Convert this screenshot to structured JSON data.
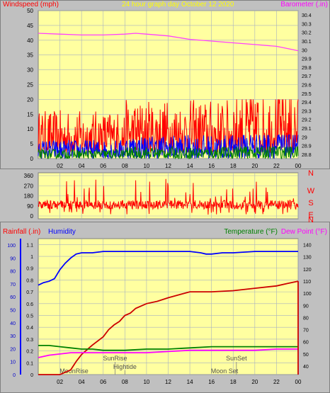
{
  "header": {
    "windspeed_label": "Windspeed (mph)",
    "graph_title": "24 hour graph day   October 12 2020",
    "barometer_label": "Barometer (.in)"
  },
  "compass": [
    "N",
    "W",
    "S",
    "E",
    "N"
  ],
  "lower_header": {
    "rainfall_label": "Rainfall (.in)",
    "humidity_label": "Humidity",
    "temperature_label": "Temperature (°F)",
    "dewpoint_label": "Dew Point (°F)"
  },
  "colors": {
    "plot_bg": "#ffffa0",
    "grid": "#a8b0c0",
    "wind_gust": "#ff0000",
    "wind_avg": "#0000ff",
    "wind_low": "#008000",
    "barometer": "#ff40ff",
    "direction": "#ff0000",
    "humidity": "#0000ff",
    "rainfall": "#cc0000",
    "temperature": "#008000",
    "dewpoint": "#ff00ff"
  },
  "chart_data": [
    {
      "type": "line",
      "title": "24 hour graph day   October 12 2020",
      "xlabel": "",
      "x_ticks": [
        "02",
        "04",
        "06",
        "08",
        "10",
        "12",
        "14",
        "16",
        "18",
        "20",
        "22",
        "00"
      ],
      "y_left_label": "Windspeed (mph)",
      "y_left_ticks": [
        "50",
        "45",
        "40",
        "35",
        "30",
        "25",
        "20",
        "15",
        "10",
        "5",
        "0"
      ],
      "ylim_left": [
        0,
        50
      ],
      "y_right_label": "Barometer (.in)",
      "y_right_ticks": [
        "30.4",
        "30.3",
        "30.2",
        "30.1",
        "30",
        "29.9",
        "29.8",
        "29.7",
        "29.6",
        "29.5",
        "29.4",
        "29.3",
        "29.2",
        "29.1",
        "29",
        "28.9",
        "28.8"
      ],
      "ylim_right": [
        28.75,
        30.45
      ],
      "grid": true,
      "series": [
        {
          "name": "Barometer (.in)",
          "axis": "right",
          "x": [
            0,
            2,
            4,
            6,
            8,
            9,
            10,
            12,
            14,
            16,
            18,
            20,
            22,
            24
          ],
          "values": [
            30.19,
            30.18,
            30.17,
            30.17,
            30.18,
            30.19,
            30.18,
            30.16,
            30.12,
            30.1,
            30.08,
            30.06,
            30.04,
            29.99
          ]
        }
      ],
      "wind_bands": {
        "gust_range": [
          2,
          22
        ],
        "avg_range": [
          0,
          8
        ],
        "low_range": [
          0,
          4
        ]
      }
    },
    {
      "type": "line",
      "title": "",
      "x_ticks": [
        "02",
        "04",
        "06",
        "08",
        "10",
        "12",
        "14",
        "16",
        "18",
        "20",
        "22",
        "00"
      ],
      "y_ticks": [
        "360",
        "270",
        "180",
        "90",
        "0"
      ],
      "ylim": [
        0,
        360
      ],
      "grid": true,
      "direction_range": [
        10,
        360
      ]
    },
    {
      "type": "line",
      "title": "",
      "x_ticks": [
        "02",
        "04",
        "06",
        "08",
        "10",
        "12",
        "14",
        "16",
        "18",
        "20",
        "22",
        "00"
      ],
      "y_left_outer_label": "Rainfall (.in)",
      "y_left_outer_ticks": [
        "100",
        "90",
        "80",
        "70",
        "60",
        "50",
        "40",
        "30",
        "20",
        "10",
        "0"
      ],
      "y_left_inner_label": "Humidity",
      "y_left_inner_ticks": [
        "1.1",
        "1",
        "0.9",
        "0.8",
        "0.7",
        "0.6",
        "0.5",
        "0.4",
        "0.3",
        "0.2",
        "0.1",
        "0"
      ],
      "ylim_humidity": [
        0,
        100
      ],
      "ylim_rain": [
        0,
        1.15
      ],
      "y_right_label": "Temperature (°F)",
      "y_right_label2": "Dew Point (°F)",
      "y_right_ticks": [
        "140",
        "130",
        "120",
        "110",
        "100",
        "90",
        "80",
        "70",
        "60",
        "50",
        "40"
      ],
      "ylim_right": [
        33,
        145
      ],
      "grid": true,
      "series": [
        {
          "name": "Humidity",
          "axis": "humidity",
          "x": [
            0,
            0.5,
            1,
            1.5,
            2,
            2.5,
            3,
            3.5,
            4,
            5,
            6,
            8,
            10,
            12,
            14,
            15,
            15.5,
            16,
            17,
            18,
            20,
            22,
            24
          ],
          "values": [
            69,
            71,
            72,
            74,
            81,
            86,
            90,
            93,
            94,
            94,
            95,
            95,
            95,
            95,
            95,
            94,
            93,
            93,
            94,
            94,
            95,
            95,
            95
          ]
        },
        {
          "name": "Rainfall (.in)",
          "axis": "rain",
          "x": [
            0,
            2,
            2.5,
            3,
            3.5,
            4,
            5,
            6,
            6.5,
            7,
            7.5,
            8,
            8.5,
            9,
            10,
            11,
            12,
            14,
            16,
            18,
            20,
            22,
            23,
            24
          ],
          "values": [
            0,
            0,
            0.02,
            0.04,
            0.11,
            0.17,
            0.25,
            0.32,
            0.38,
            0.42,
            0.45,
            0.5,
            0.52,
            0.56,
            0.6,
            0.62,
            0.65,
            0.7,
            0.7,
            0.71,
            0.73,
            0.75,
            0.77,
            0.79
          ]
        },
        {
          "name": "Temperature (°F)",
          "axis": "right",
          "x": [
            0,
            1,
            2,
            3,
            4,
            5,
            6,
            7,
            8,
            10,
            12,
            14,
            16,
            18,
            20,
            22,
            24
          ],
          "values": [
            57,
            57,
            56,
            55,
            54,
            54,
            53,
            53,
            53,
            54,
            54,
            55,
            56,
            56,
            56,
            56,
            56
          ]
        },
        {
          "name": "Dew Point (°F)",
          "axis": "right",
          "x": [
            0,
            1,
            2,
            3,
            4,
            5,
            6,
            8,
            10,
            12,
            14,
            16,
            18,
            20,
            22,
            24
          ],
          "values": [
            47,
            49,
            50,
            51,
            51,
            51,
            51,
            51,
            51,
            52,
            53,
            53,
            53,
            53,
            54,
            54
          ]
        }
      ],
      "events": [
        {
          "label": "MoonRise",
          "x": 3.3
        },
        {
          "label": "SunRise",
          "x": 7.1
        },
        {
          "label": "Hightide",
          "x": 8.0
        },
        {
          "label": "SunSet",
          "x": 18.3
        },
        {
          "label": "Moon Set",
          "x": 17.2
        }
      ]
    }
  ]
}
